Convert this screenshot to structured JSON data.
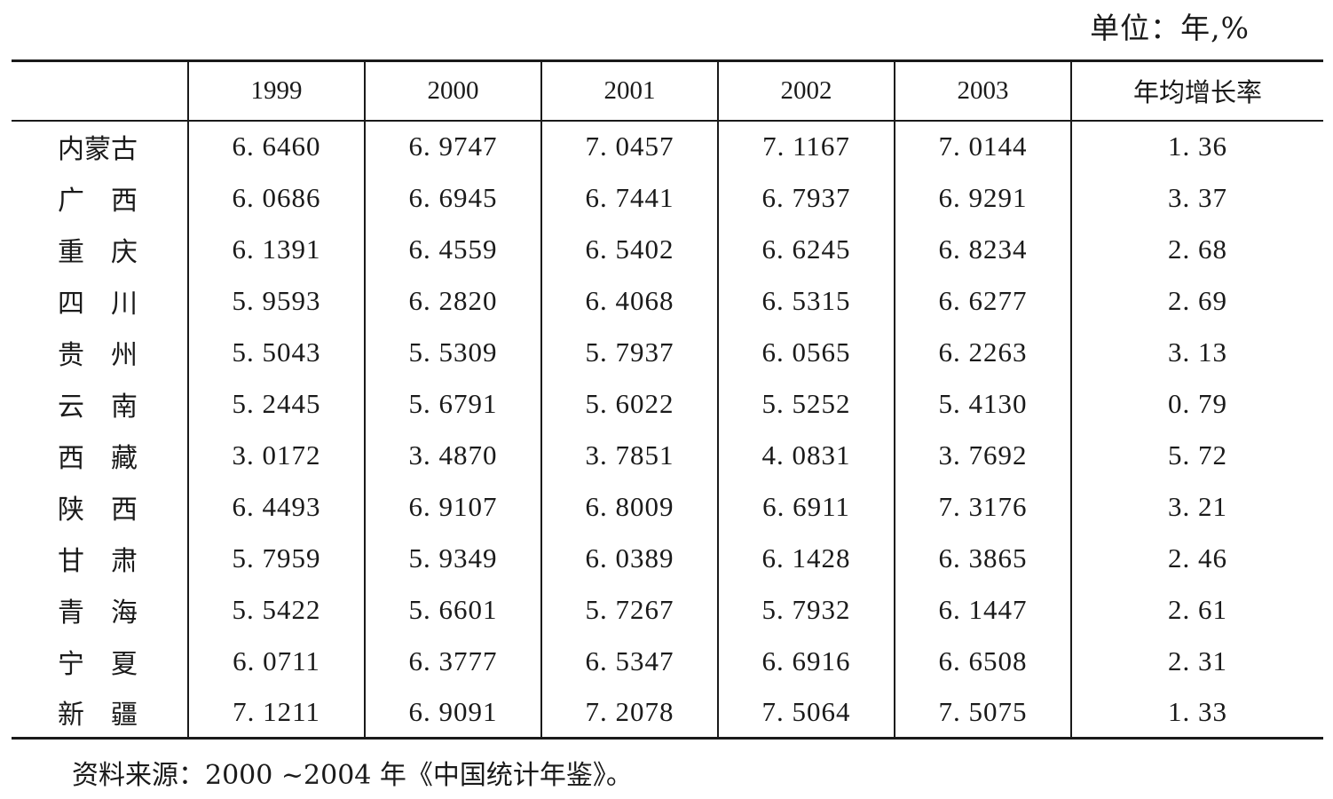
{
  "unit_label": "单位：年,%",
  "table": {
    "headers": [
      "",
      "1999",
      "2000",
      "2001",
      "2002",
      "2003",
      "年均增长率"
    ],
    "rows": [
      {
        "region": "内蒙古",
        "values": [
          "6. 6460",
          "6. 9747",
          "7. 0457",
          "7. 1167",
          "7. 0144",
          "1. 36"
        ]
      },
      {
        "region": "广　西",
        "values": [
          "6. 0686",
          "6. 6945",
          "6. 7441",
          "6. 7937",
          "6. 9291",
          "3. 37"
        ]
      },
      {
        "region": "重　庆",
        "values": [
          "6. 1391",
          "6. 4559",
          "6. 5402",
          "6. 6245",
          "6. 8234",
          "2. 68"
        ]
      },
      {
        "region": "四　川",
        "values": [
          "5. 9593",
          "6. 2820",
          "6. 4068",
          "6. 5315",
          "6. 6277",
          "2. 69"
        ]
      },
      {
        "region": "贵　州",
        "values": [
          "5. 5043",
          "5. 5309",
          "5. 7937",
          "6. 0565",
          "6. 2263",
          "3. 13"
        ]
      },
      {
        "region": "云　南",
        "values": [
          "5. 2445",
          "5. 6791",
          "5. 6022",
          "5. 5252",
          "5. 4130",
          "0. 79"
        ]
      },
      {
        "region": "西　藏",
        "values": [
          "3. 0172",
          "3. 4870",
          "3. 7851",
          "4. 0831",
          "3. 7692",
          "5. 72"
        ]
      },
      {
        "region": "陕　西",
        "values": [
          "6. 4493",
          "6. 9107",
          "6. 8009",
          "6. 6911",
          "7. 3176",
          "3. 21"
        ]
      },
      {
        "region": "甘　肃",
        "values": [
          "5. 7959",
          "5. 9349",
          "6. 0389",
          "6. 1428",
          "6. 3865",
          "2. 46"
        ]
      },
      {
        "region": "青　海",
        "values": [
          "5. 5422",
          "5. 6601",
          "5. 7267",
          "5. 7932",
          "6. 1447",
          "2. 61"
        ]
      },
      {
        "region": "宁　夏",
        "values": [
          "6. 0711",
          "6. 3777",
          "6. 5347",
          "6. 6916",
          "6. 6508",
          "2. 31"
        ]
      },
      {
        "region": "新　疆",
        "values": [
          "7. 1211",
          "6. 9091",
          "7. 2078",
          "7. 5064",
          "7. 5075",
          "1. 33"
        ]
      }
    ]
  },
  "source_note": "资料来源：2000 ~2004 年《中国统计年鉴》。"
}
